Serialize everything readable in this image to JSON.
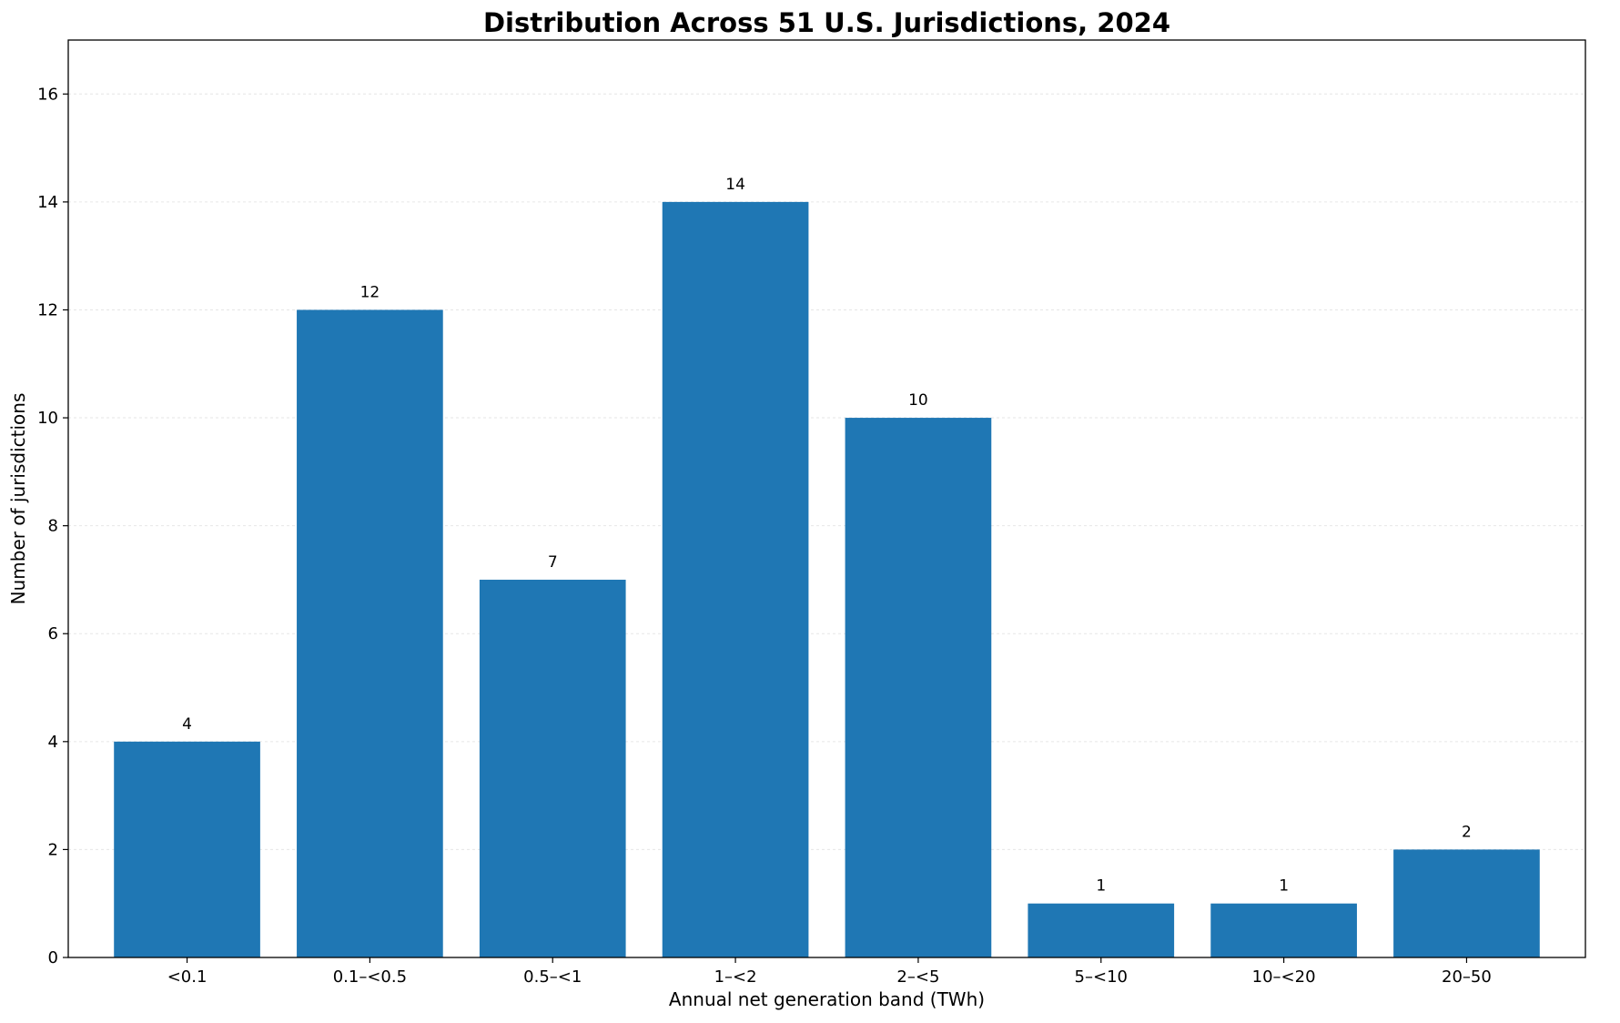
{
  "chart_data": {
    "type": "bar",
    "title": "Distribution Across 51 U.S. Jurisdictions, 2024",
    "xlabel": "Annual net generation band (TWh)",
    "ylabel": "Number of jurisdictions",
    "categories": [
      "<0.1",
      "0.1–<0.5",
      "0.5–<1",
      "1–<2",
      "2–<5",
      "5–<10",
      "10–<20",
      "20–50"
    ],
    "values": [
      4,
      12,
      7,
      14,
      10,
      1,
      1,
      2
    ],
    "ylim": [
      0,
      17
    ],
    "yticks": [
      0,
      2,
      4,
      6,
      8,
      10,
      12,
      14,
      16
    ],
    "grid": "horizontal",
    "bar_color": "#1f77b4",
    "grid_color": "#e6e6e6",
    "data_labels": true
  }
}
